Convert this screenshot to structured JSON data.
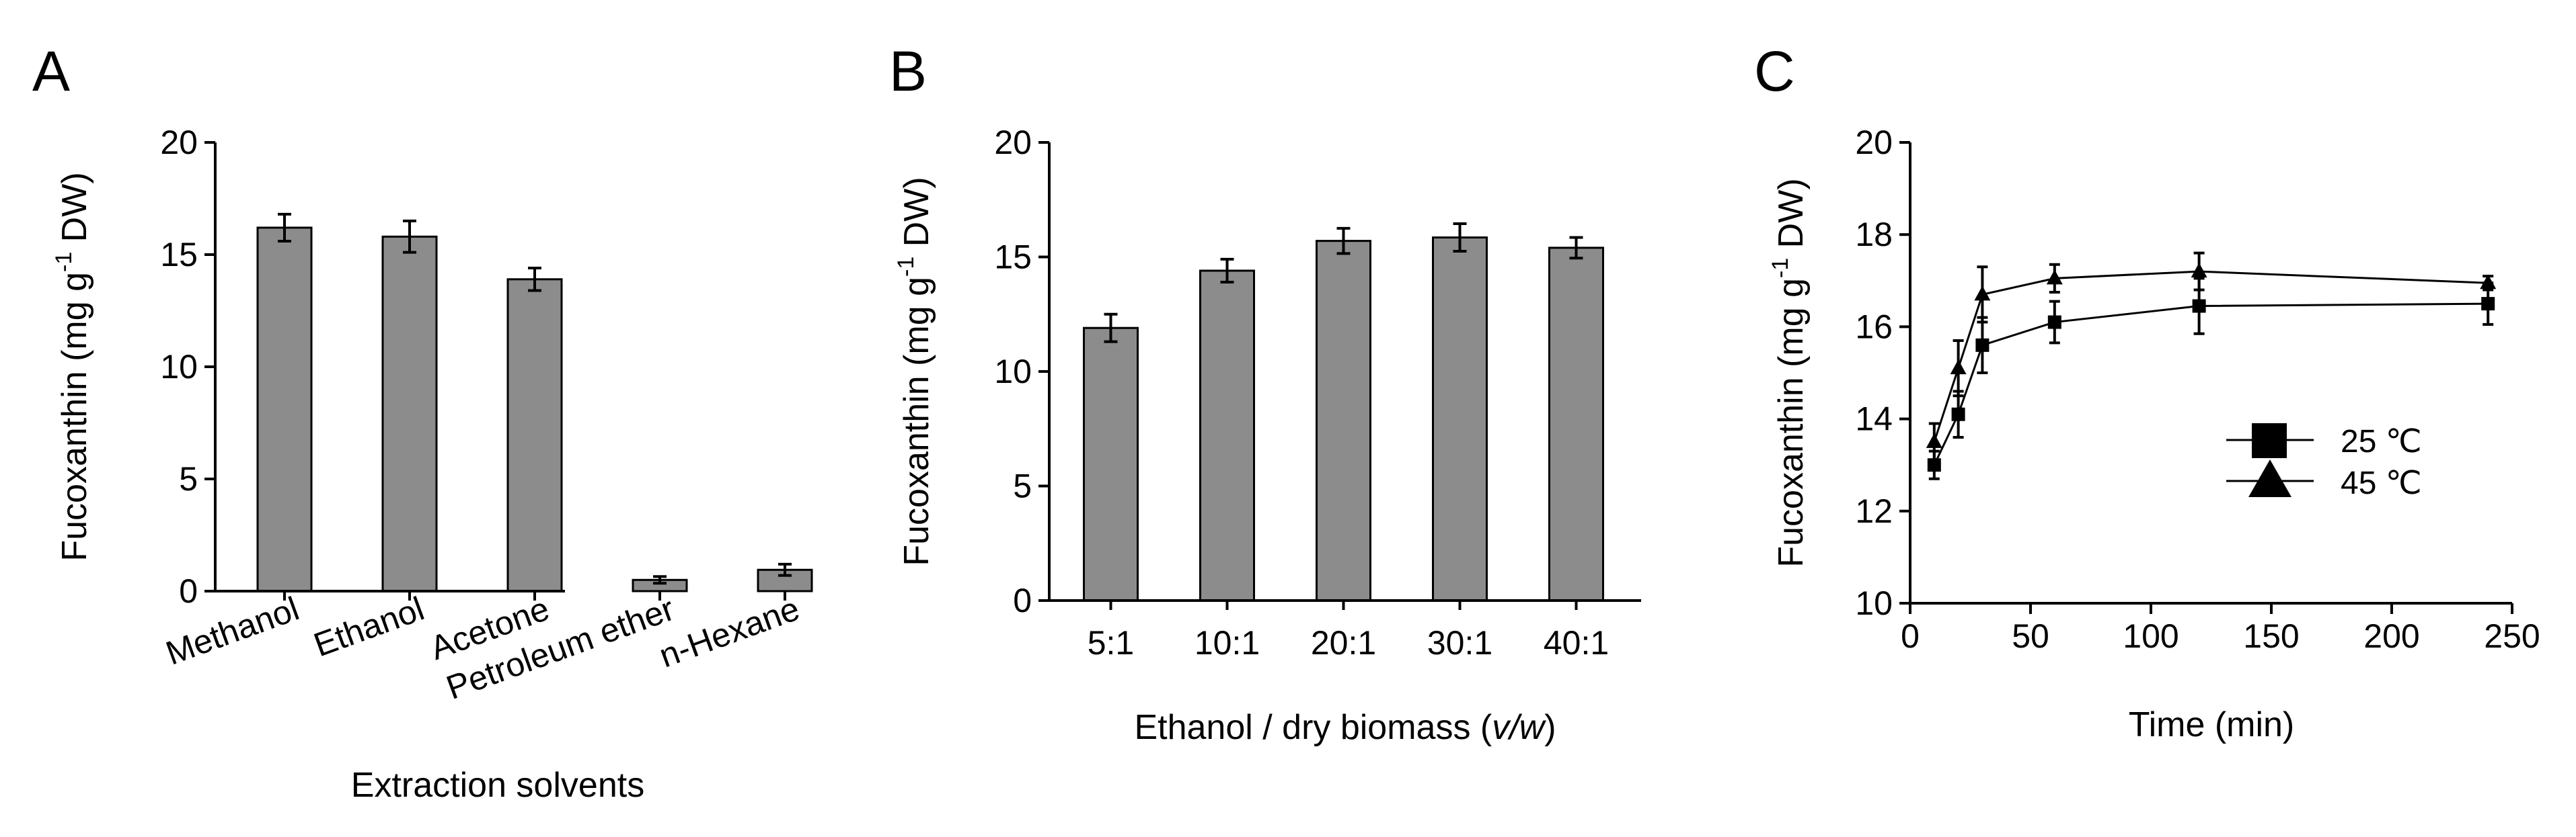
{
  "colors": {
    "bar_fill": "#8c8c8c",
    "ink": "#000000"
  },
  "chart_data": [
    {
      "type": "bar",
      "panel": "A",
      "title": "",
      "xlabel": "Extraction solvents",
      "ylabel_prefix": "Fucoxanthin (mg g",
      "ylabel_sup": "-1",
      "ylabel_suffix": " DW)",
      "ylim": [
        0,
        20
      ],
      "yticks": [
        0,
        5,
        10,
        15,
        20
      ],
      "categories": [
        "Methanol",
        "Ethanol",
        "Acetone",
        "Petroleum ether",
        "n-Hexane"
      ],
      "values": [
        16.2,
        15.8,
        13.9,
        0.5,
        0.95
      ],
      "errors": [
        0.6,
        0.7,
        0.5,
        0.15,
        0.25
      ],
      "grid": false
    },
    {
      "type": "bar",
      "panel": "B",
      "title": "",
      "xlabel_main": "Ethanol / dry biomass (",
      "xlabel_italic": "v/w",
      "xlabel_end": ")",
      "ylabel_prefix": "Fucoxanthin (mg g",
      "ylabel_sup": "-1",
      "ylabel_suffix": " DW)",
      "ylim": [
        0,
        20
      ],
      "yticks": [
        0,
        5,
        10,
        15,
        20
      ],
      "categories": [
        "5:1",
        "10:1",
        "20:1",
        "30:1",
        "40:1"
      ],
      "values": [
        11.9,
        14.4,
        15.7,
        15.85,
        15.4
      ],
      "errors": [
        0.6,
        0.5,
        0.55,
        0.6,
        0.45
      ],
      "grid": false
    },
    {
      "type": "line",
      "panel": "C",
      "title": "",
      "xlabel": "Time (min)",
      "ylabel_prefix": "Fucoxanthin (mg g",
      "ylabel_sup": "-1",
      "ylabel_suffix": " DW)",
      "xlim": [
        0,
        250
      ],
      "xticks": [
        0,
        50,
        100,
        150,
        200,
        250
      ],
      "ylim": [
        10,
        20
      ],
      "yticks": [
        10,
        12,
        14,
        16,
        18,
        20
      ],
      "legend_position": "center-right",
      "series": [
        {
          "name": "25 ℃",
          "marker": "square",
          "x": [
            10,
            20,
            30,
            60,
            120,
            240
          ],
          "y": [
            13.0,
            14.1,
            15.6,
            16.1,
            16.45,
            16.5
          ],
          "errors": [
            0.3,
            0.5,
            0.6,
            0.45,
            0.6,
            0.45
          ]
        },
        {
          "name": "45 ℃",
          "marker": "triangle",
          "x": [
            10,
            20,
            30,
            60,
            120,
            240
          ],
          "y": [
            13.5,
            15.1,
            16.7,
            17.05,
            17.2,
            16.95
          ],
          "errors": [
            0.4,
            0.6,
            0.6,
            0.3,
            0.4,
            0.15
          ]
        }
      ]
    }
  ]
}
